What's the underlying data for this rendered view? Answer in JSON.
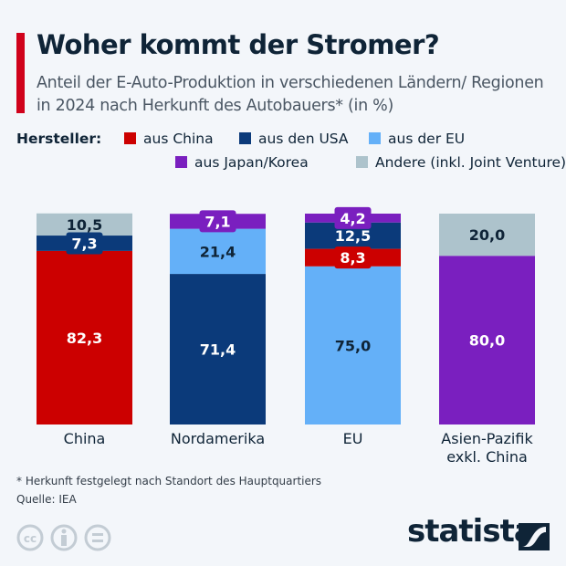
{
  "title": "Woher kommt der Stromer?",
  "subtitle": "Anteil der E-Auto-Produktion in verschiedenen Ländern/ Regionen in 2024 nach Herkunft des Autobauers* (in %)",
  "legend": {
    "title": "Hersteller:",
    "items": [
      {
        "label": "aus China",
        "color": "#cc0000"
      },
      {
        "label": "aus den USA",
        "color": "#0b3a7a"
      },
      {
        "label": "aus der EU",
        "color": "#64b0f8"
      },
      {
        "label": "aus Japan/Korea",
        "color": "#7a1fbf"
      },
      {
        "label": "Andere (inkl. Joint Venture)",
        "color": "#adc3cc"
      }
    ]
  },
  "chart_data": {
    "type": "bar",
    "stacked": true,
    "categories": [
      "China",
      "Nordamerika",
      "EU",
      "Asien-Pazifik exkl. China"
    ],
    "stacks": [
      [
        {
          "series": "aus China",
          "value": 82.3,
          "label": "82,3"
        },
        {
          "series": "aus den USA",
          "value": 7.3,
          "label": "7,3"
        },
        {
          "series": "Andere (inkl. Joint Venture)",
          "value": 10.5,
          "label": "10,5"
        }
      ],
      [
        {
          "series": "aus den USA",
          "value": 71.4,
          "label": "71,4"
        },
        {
          "series": "aus der EU",
          "value": 21.4,
          "label": "21,4"
        },
        {
          "series": "aus Japan/Korea",
          "value": 7.1,
          "label": "7,1"
        }
      ],
      [
        {
          "series": "aus der EU",
          "value": 75.0,
          "label": "75,0"
        },
        {
          "series": "aus China",
          "value": 8.3,
          "label": "8,3"
        },
        {
          "series": "aus den USA",
          "value": 12.5,
          "label": "12,5"
        },
        {
          "series": "aus Japan/Korea",
          "value": 4.2,
          "label": "4,2"
        }
      ],
      [
        {
          "series": "aus Japan/Korea",
          "value": 80.0,
          "label": "80,0"
        },
        {
          "series": "Andere (inkl. Joint Venture)",
          "value": 20.0,
          "label": "20,0"
        }
      ]
    ],
    "ylim": [
      0,
      100
    ]
  },
  "footnote": "* Herkunft festgelegt nach Standort des Hauptquartiers",
  "source": "Quelle: IEA",
  "brand": "statista"
}
